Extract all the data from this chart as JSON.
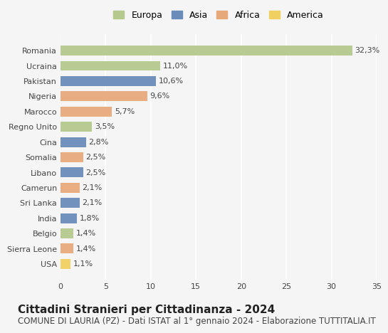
{
  "countries": [
    "Romania",
    "Ucraina",
    "Pakistan",
    "Nigeria",
    "Marocco",
    "Regno Unito",
    "Cina",
    "Somalia",
    "Libano",
    "Camerun",
    "Sri Lanka",
    "India",
    "Belgio",
    "Sierra Leone",
    "USA"
  ],
  "values": [
    32.3,
    11.0,
    10.6,
    9.6,
    5.7,
    3.5,
    2.8,
    2.5,
    2.5,
    2.1,
    2.1,
    1.8,
    1.4,
    1.4,
    1.1
  ],
  "labels": [
    "32,3%",
    "11,0%",
    "10,6%",
    "9,6%",
    "5,7%",
    "3,5%",
    "2,8%",
    "2,5%",
    "2,5%",
    "2,1%",
    "2,1%",
    "1,8%",
    "1,4%",
    "1,4%",
    "1,1%"
  ],
  "continents": [
    "Europa",
    "Europa",
    "Asia",
    "Africa",
    "Africa",
    "Europa",
    "Asia",
    "Africa",
    "Asia",
    "Africa",
    "Asia",
    "Asia",
    "Europa",
    "Africa",
    "America"
  ],
  "continent_colors": {
    "Europa": "#b5c98e",
    "Asia": "#6b8cba",
    "Africa": "#e8a97a",
    "America": "#f0d060"
  },
  "legend_order": [
    "Europa",
    "Asia",
    "Africa",
    "America"
  ],
  "title": "Cittadini Stranieri per Cittadinanza - 2024",
  "subtitle": "COMUNE DI LAURIA (PZ) - Dati ISTAT al 1° gennaio 2024 - Elaborazione TUTTITALIA.IT",
  "xlim": [
    0,
    35
  ],
  "xticks": [
    0,
    5,
    10,
    15,
    20,
    25,
    30,
    35
  ],
  "background_color": "#f5f5f5",
  "grid_color": "#ffffff",
  "bar_height": 0.65,
  "title_fontsize": 11,
  "subtitle_fontsize": 8.5,
  "label_fontsize": 8,
  "tick_fontsize": 8,
  "legend_fontsize": 9
}
